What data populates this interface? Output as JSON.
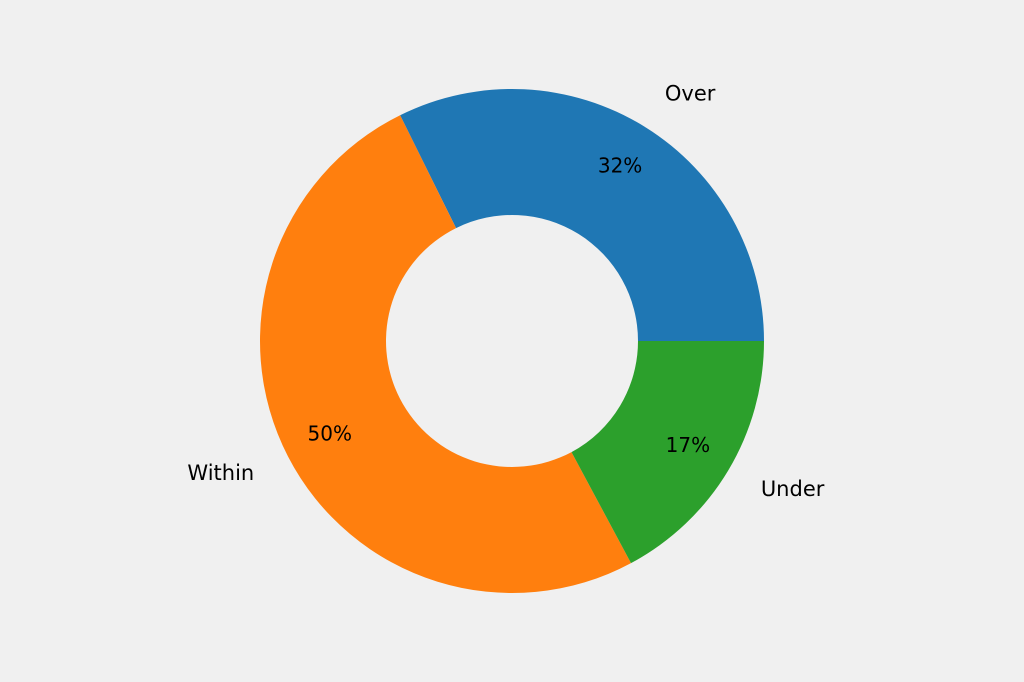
{
  "chart_data": {
    "type": "pie",
    "variant": "donut",
    "slices": [
      {
        "label": "Over",
        "value": 32,
        "pct_label": "32%",
        "color": "#1f77b4"
      },
      {
        "label": "Within",
        "value": 50,
        "pct_label": "50%",
        "color": "#ff7f0e"
      },
      {
        "label": "Under",
        "value": 17,
        "pct_label": "17%",
        "color": "#2ca02c"
      }
    ],
    "legend": "none"
  },
  "colors": {
    "background": "#f0f0f0"
  }
}
